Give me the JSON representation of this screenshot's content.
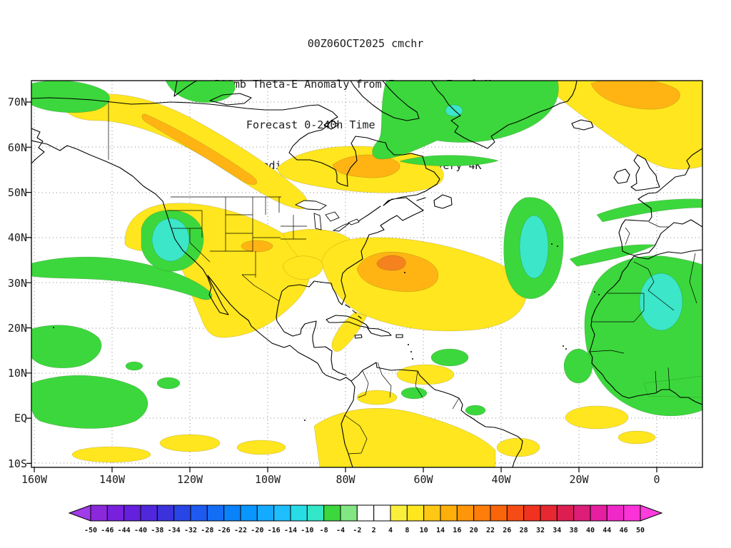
{
  "title": {
    "lines": [
      "00Z06OCT2025 cmchr",
      "500mb Theta-E Anomaly from Forecast Zonal Mean,",
      "Forecast 0-240h Time Mean (K) T=198 h",
      "Shading every 2K; Contoured every 4K"
    ]
  },
  "map": {
    "lat_labels": [
      "70N",
      "60N",
      "50N",
      "40N",
      "30N",
      "20N",
      "10N",
      "EQ",
      "10S"
    ],
    "lon_labels": [
      "160W",
      "140W",
      "120W",
      "100W",
      "80W",
      "60W",
      "40W",
      "20W",
      "0"
    ]
  },
  "colorbar": {
    "tick_labels": [
      "-50",
      "-46",
      "-44",
      "-40",
      "-38",
      "-34",
      "-32",
      "-28",
      "-26",
      "-22",
      "-20",
      "-16",
      "-14",
      "-10",
      "-8",
      "-4",
      "-2",
      "2",
      "4",
      "8",
      "10",
      "14",
      "16",
      "20",
      "22",
      "26",
      "28",
      "32",
      "34",
      "38",
      "40",
      "44",
      "46",
      "50"
    ],
    "colors": [
      "#A03CE8",
      "#8C28DC",
      "#7820DC",
      "#6420DC",
      "#5028DC",
      "#3C32DC",
      "#2846E6",
      "#1E5AF0",
      "#146EF5",
      "#0A82FA",
      "#0A96FF",
      "#14AAFF",
      "#1EBEFF",
      "#28DCE6",
      "#32E6C8",
      "#3CD73C",
      "#82E682",
      "#FFFFFF",
      "#FFFFFF",
      "#FAF03C",
      "#FFE61E",
      "#FFC814",
      "#FFAF0A",
      "#FF960A",
      "#FF7D0A",
      "#FA640A",
      "#F54B14",
      "#F0321E",
      "#E62832",
      "#DC1E50",
      "#DC1E78",
      "#E61EA0",
      "#F028C8",
      "#FA32D7",
      "#FF3CDC"
    ]
  },
  "legend_colors": {
    "shade_yellow": "#FFE61E",
    "shade_orange": "#FFB414",
    "shade_deep_orange": "#F5821E",
    "shade_green": "#3CD73C",
    "shade_cyan": "#3CE6C8"
  }
}
